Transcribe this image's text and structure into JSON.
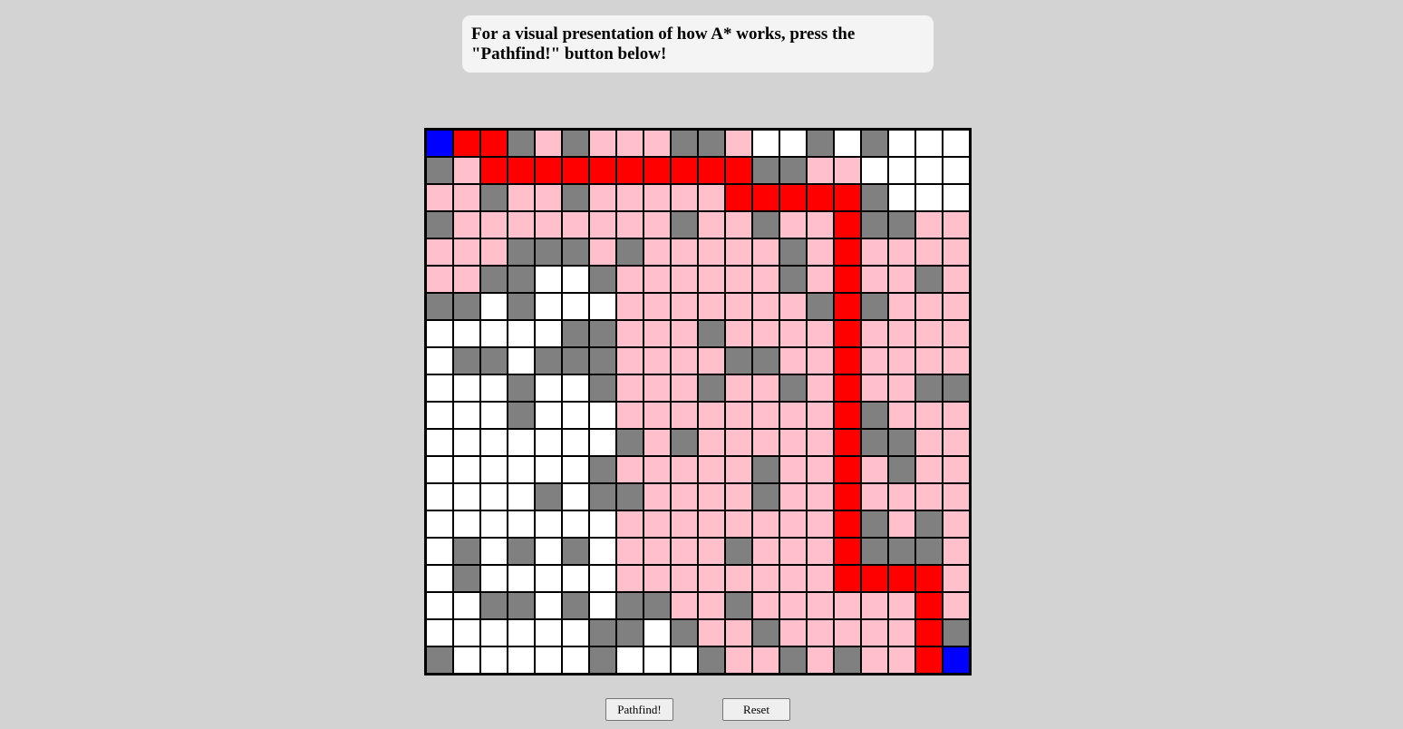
{
  "instructions": {
    "line1": "For a visual presentation of how A* works, press the",
    "line2": "\"Pathfind!\" button below!"
  },
  "buttons": {
    "pathfind_label": "Pathfind!",
    "reset_label": "Reset"
  },
  "grid": {
    "rows": 20,
    "cols": 20,
    "legend": {
      "B": "endpoint",
      "R": "path",
      "P": "explored",
      "G": "wall",
      "W": "empty"
    },
    "colors": {
      "B": "#0000ff",
      "R": "#ff0000",
      "P": "#ffc0cb",
      "G": "#808080",
      "W": "#ffffff"
    },
    "cells": [
      "BRRGPGPPPGGPWWGWGWWW",
      "GPRRRRRRRRRRGGPPWWWW",
      "PPGPPGPPPPPRRRRRGWWW",
      "GPPPPPPPPGPPGPPRGGPP",
      "PPPGGGPGPPPPPGPRPPPP",
      "PPGGWWGPPPPPPGPRPPGP",
      "GGWGWWWPPPPPPPGRGPPP",
      "WWWWWGGPPPGPPPPRPPPP",
      "WGGWGGGPPPPGGPPRPPPP",
      "WWWGWWGPPPGPPGPRPPGG",
      "WWWGWWWPPPPPPPPRGPPP",
      "WWWWWWWGPGPPPPPRGGPP",
      "WWWWWWGPPPPPGPPRPGPP",
      "WWWWGWGGPPPPGPPRPPPP",
      "WWWWWWWPPPPPPPPRGPGP",
      "WGWGWGWPPPPGPPPRGGGP",
      "WGWWWWWPPPPPPPPRRRRP",
      "WWGGWGWGGPPGPPPPPPRP",
      "WWWWWWGGWGPPGPPPPPRG",
      "GWWWWWGWWWGPPGPGPPRB"
    ]
  }
}
